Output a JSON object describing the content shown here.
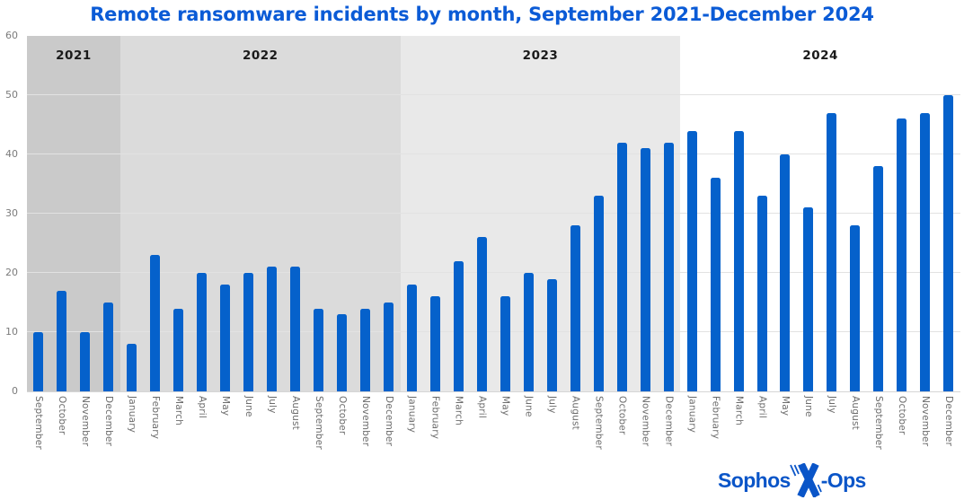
{
  "chart_data": {
    "type": "bar",
    "title": "Remote ransomware incidents by month, September 2021-December 2024",
    "xlabel": "",
    "ylabel": "",
    "ylim": [
      0,
      60
    ],
    "yticks": [
      0,
      10,
      20,
      30,
      40,
      50,
      60
    ],
    "grid": true,
    "legend": "none",
    "categories": [
      "September 2021",
      "October 2021",
      "November 2021",
      "December 2021",
      "January 2022",
      "February 2022",
      "March 2022",
      "April 2022",
      "May 2022",
      "June 2022",
      "July 2022",
      "August 2022",
      "September 2022",
      "October 2022",
      "November 2022",
      "December 2022",
      "January 2023",
      "February 2023",
      "March 2023",
      "April 2023",
      "May 2023",
      "June 2023",
      "July 2023",
      "August 2023",
      "September 2023",
      "October 2023",
      "November 2023",
      "December 2023",
      "January 2024",
      "February 2024",
      "March 2024",
      "April 2024",
      "May 2024",
      "June 2024",
      "July 2024",
      "August 2024",
      "September 2024",
      "October 2024",
      "November 2024",
      "December 2024"
    ],
    "values": [
      10,
      17,
      10,
      15,
      8,
      23,
      14,
      20,
      18,
      20,
      21,
      21,
      14,
      13,
      14,
      15,
      18,
      16,
      22,
      26,
      16,
      20,
      19,
      28,
      33,
      42,
      41,
      42,
      44,
      36,
      44,
      33,
      40,
      31,
      47,
      28,
      38,
      46,
      47,
      50
    ],
    "year_bands": [
      {
        "year": "2021",
        "shade": "#cacaca",
        "months": [
          "September",
          "October",
          "November",
          "December"
        ],
        "values": [
          10,
          17,
          10,
          15
        ]
      },
      {
        "year": "2022",
        "shade": "#dbdbdb",
        "months": [
          "January",
          "February",
          "March",
          "April",
          "May",
          "June",
          "July",
          "August",
          "September",
          "October",
          "November",
          "December"
        ],
        "values": [
          8,
          23,
          14,
          20,
          18,
          20,
          21,
          21,
          14,
          13,
          14,
          15
        ]
      },
      {
        "year": "2023",
        "shade": "#e9e9e9",
        "months": [
          "January",
          "February",
          "March",
          "April",
          "May",
          "June",
          "July",
          "August",
          "September",
          "October",
          "November",
          "December"
        ],
        "values": [
          18,
          16,
          22,
          26,
          16,
          20,
          19,
          28,
          33,
          42,
          41,
          42
        ]
      },
      {
        "year": "2024",
        "shade": "#ffffff",
        "months": [
          "January",
          "February",
          "March",
          "April",
          "May",
          "June",
          "July",
          "August",
          "September",
          "October",
          "November",
          "December"
        ],
        "values": [
          44,
          36,
          44,
          33,
          40,
          31,
          47,
          28,
          38,
          46,
          47,
          50
        ]
      }
    ]
  },
  "colors": {
    "title_text": "#0b5bd6",
    "bar": "#0561cb",
    "gridline": "#e2e2e2",
    "axis_line": "#d6d6d6",
    "y_tick_text": "#7b7b7b",
    "x_tick_text": "#6c6c6c",
    "year_label_text": "#1a1a1a",
    "logo_blue": "#0a55c8",
    "band_2021": "#cacaca",
    "band_2022": "#dbdbdb",
    "band_2023": "#e9e9e9",
    "band_2024": "#ffffff"
  },
  "logo": {
    "text_left": "Sophos",
    "text_right": "-Ops",
    "icon": "x-hatch-icon"
  }
}
